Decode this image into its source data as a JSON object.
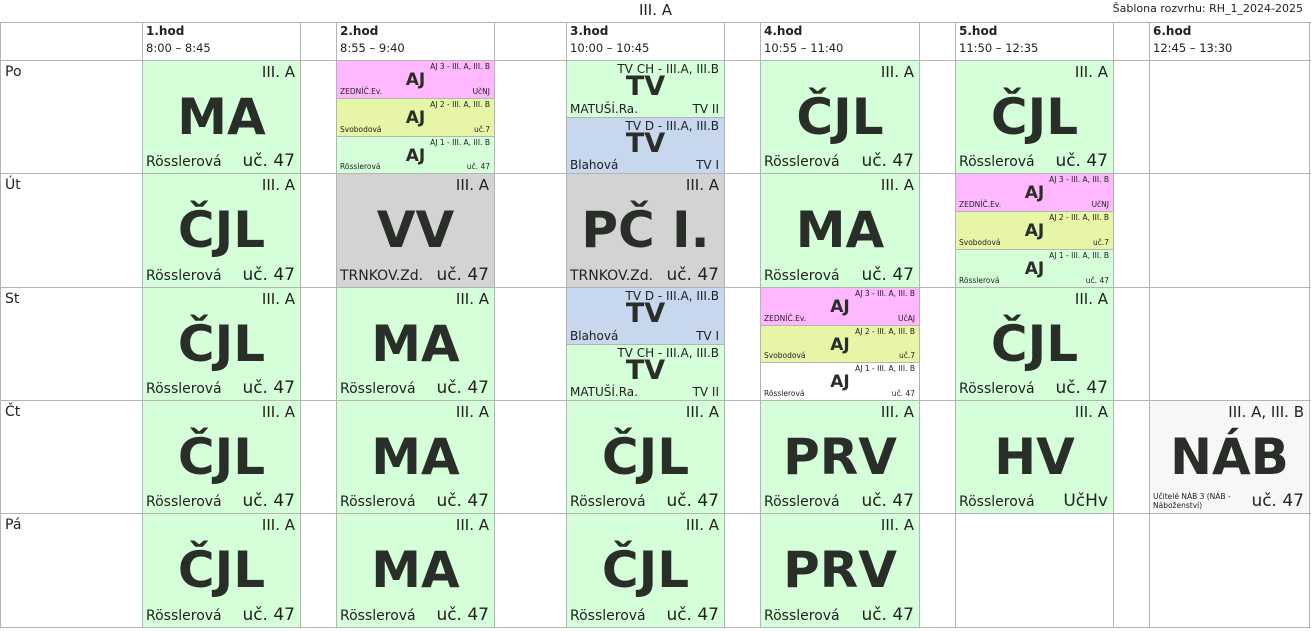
{
  "title": "III. A",
  "template": "Šablona rozvrhu: RH_1_2024-2025",
  "periods": [
    {
      "num": "1.hod",
      "time": "8:00 – 8:45"
    },
    {
      "num": "2.hod",
      "time": "8:55 – 9:40"
    },
    {
      "num": "3.hod",
      "time": "10:00 – 10:45"
    },
    {
      "num": "4.hod",
      "time": "10:55 – 11:40"
    },
    {
      "num": "5.hod",
      "time": "11:50 – 12:35"
    },
    {
      "num": "6.hod",
      "time": "12:45 – 13:30"
    }
  ],
  "days": [
    "Po",
    "Út",
    "St",
    "Čt",
    "Pá"
  ],
  "lessons": {
    "po1": {
      "cls": "III. A",
      "subj": "MA",
      "teacher": "Rösslerová",
      "room": "uč. 47"
    },
    "po4": {
      "cls": "III. A",
      "subj": "ČJL",
      "teacher": "Rösslerová",
      "room": "uč. 47"
    },
    "po5": {
      "cls": "III. A",
      "subj": "ČJL",
      "teacher": "Rösslerová",
      "room": "uč. 47"
    },
    "ut1": {
      "cls": "III. A",
      "subj": "ČJL",
      "teacher": "Rösslerová",
      "room": "uč. 47"
    },
    "ut2": {
      "cls": "III. A",
      "subj": "VV",
      "teacher": "TRNKOV.Zd.",
      "room": "uč. 47"
    },
    "ut3": {
      "cls": "III. A",
      "subj": "PČ I.",
      "teacher": "TRNKOV.Zd.",
      "room": "uč. 47"
    },
    "ut4": {
      "cls": "III. A",
      "subj": "MA",
      "teacher": "Rösslerová",
      "room": "uč. 47"
    },
    "st1": {
      "cls": "III. A",
      "subj": "ČJL",
      "teacher": "Rösslerová",
      "room": "uč. 47"
    },
    "st2": {
      "cls": "III. A",
      "subj": "MA",
      "teacher": "Rösslerová",
      "room": "uč. 47"
    },
    "st5": {
      "cls": "III. A",
      "subj": "ČJL",
      "teacher": "Rösslerová",
      "room": "uč. 47"
    },
    "ct1": {
      "cls": "III. A",
      "subj": "ČJL",
      "teacher": "Rösslerová",
      "room": "uč. 47"
    },
    "ct2": {
      "cls": "III. A",
      "subj": "MA",
      "teacher": "Rösslerová",
      "room": "uč. 47"
    },
    "ct3": {
      "cls": "III. A",
      "subj": "ČJL",
      "teacher": "Rösslerová",
      "room": "uč. 47"
    },
    "ct4": {
      "cls": "III. A",
      "subj": "PRV",
      "teacher": "Rösslerová",
      "room": "uč. 47"
    },
    "ct5": {
      "cls": "III. A",
      "subj": "HV",
      "teacher": "Rösslerová",
      "room": "UčHv"
    },
    "ct6": {
      "cls": "III. A, III. B",
      "subj": "NÁB",
      "teacher": "Učitelé NÁB 3  (NÁB - Náboženství)",
      "room": "uč. 47"
    },
    "pa1": {
      "cls": "III. A",
      "subj": "ČJL",
      "teacher": "Rösslerová",
      "room": "uč. 47"
    },
    "pa2": {
      "cls": "III. A",
      "subj": "MA",
      "teacher": "Rösslerová",
      "room": "uč. 47"
    },
    "pa3": {
      "cls": "III. A",
      "subj": "ČJL",
      "teacher": "Rösslerová",
      "room": "uč. 47"
    },
    "pa4": {
      "cls": "III. A",
      "subj": "PRV",
      "teacher": "Rösslerová",
      "room": "uč. 47"
    }
  },
  "aj_groups": [
    {
      "cls": "AJ 3 - III. A, III. B",
      "subj": "AJ",
      "teacher": "ZEDNÍČ.Ev.",
      "room": "UčNJ"
    },
    {
      "cls": "AJ 2 - III. A, III. B",
      "subj": "AJ",
      "teacher": "Svobodová",
      "room": "uč.7"
    },
    {
      "cls": "AJ 1 - III. A, III. B",
      "subj": "AJ",
      "teacher": "Rösslerová",
      "room": "uč. 47"
    }
  ],
  "aj_groups_st": [
    {
      "cls": "AJ 3 - III. A, III. B",
      "subj": "AJ",
      "teacher": "ZEDNÍČ.Ev.",
      "room": "UčAJ"
    },
    {
      "cls": "AJ 2 - III. A, III. B",
      "subj": "AJ",
      "teacher": "Svobodová",
      "room": "uč.7"
    },
    {
      "cls": "AJ 1 - III. A, III. B",
      "subj": "AJ",
      "teacher": "Rösslerová",
      "room": "uč. 47"
    }
  ],
  "tv_groups": {
    "ch": {
      "cls": "TV CH - III.A, III.B",
      "subj": "TV",
      "teacher": "MATUŠÍ.Ra.",
      "room": "TV II"
    },
    "d": {
      "cls": "TV D - III.A, III.B",
      "subj": "TV",
      "teacher": "Blahová",
      "room": "TV I"
    }
  },
  "colors": {
    "standard": "#d5ffd8",
    "art": "#d3d3d3",
    "tv_d": "#c6d7ee",
    "aj_3": "#ffb8ff",
    "aj_2": "#e6f6a6",
    "nab": "#f7f7f7",
    "grid": "#b4b4b4"
  }
}
